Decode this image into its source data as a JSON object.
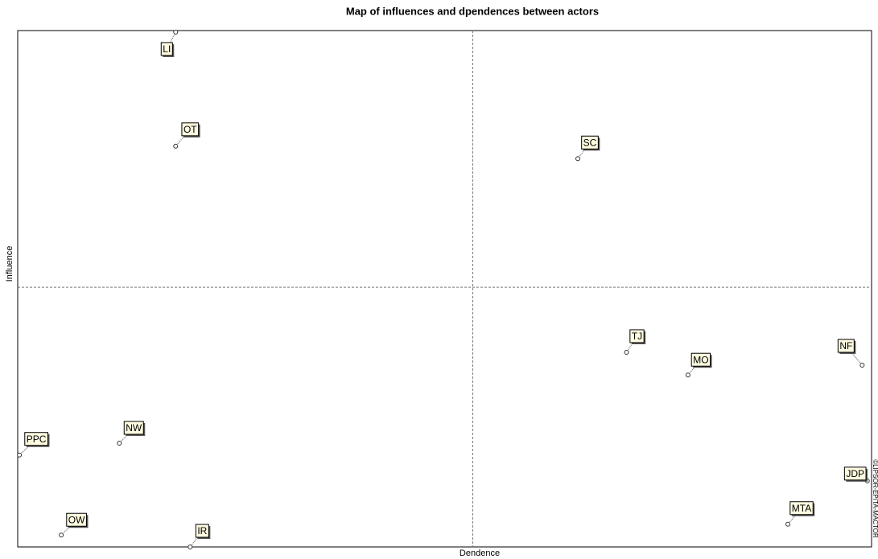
{
  "chart_data": {
    "type": "scatter",
    "title": "Map of influences and dpendences between actors",
    "x_label": "Dendence",
    "y_label": "Influence",
    "watermark": "©LIPSOR-EPITA-MACTOR",
    "xlim": [
      0,
      100
    ],
    "ylim": [
      0,
      100
    ],
    "reference_lines": {
      "x": 53.3,
      "y": 50.3
    },
    "color": "#fffbe0",
    "series": [
      {
        "name": "Actors",
        "labels": [
          "LI",
          "OT",
          "SC",
          "TJ",
          "MO",
          "NF",
          "PPC",
          "NW",
          "OW",
          "IR",
          "JDP",
          "MTA"
        ],
        "x": [
          18.5,
          18.5,
          65.6,
          71.3,
          78.5,
          98.9,
          0.2,
          11.9,
          5.1,
          20.2,
          99.5,
          90.2
        ],
        "values": [
          99.7,
          77.6,
          75.2,
          37.7,
          33.3,
          35.2,
          17.8,
          20.1,
          2.3,
          0,
          12.8,
          4.4
        ]
      }
    ]
  }
}
